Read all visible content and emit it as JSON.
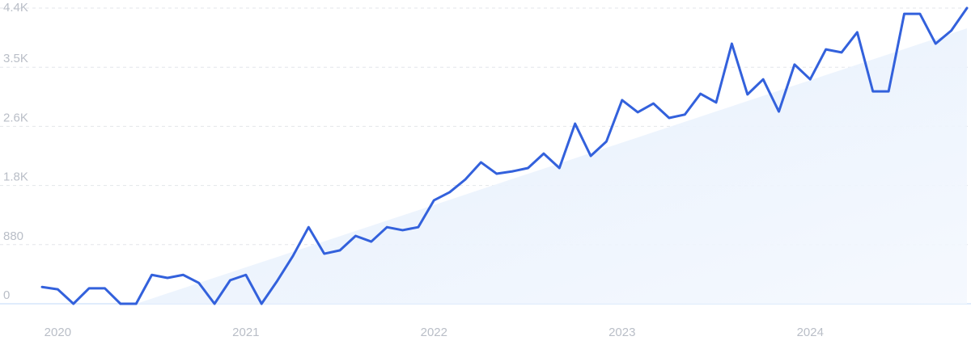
{
  "chart_data": {
    "type": "line",
    "categories": [
      null,
      "2020",
      null,
      null,
      null,
      null,
      null,
      null,
      null,
      null,
      null,
      null,
      null,
      "2021",
      null,
      null,
      null,
      null,
      null,
      null,
      null,
      null,
      null,
      null,
      null,
      "2022",
      null,
      null,
      null,
      null,
      null,
      null,
      null,
      null,
      null,
      null,
      null,
      "2023",
      null,
      null,
      null,
      null,
      null,
      null,
      null,
      null,
      null,
      null,
      null,
      "2024",
      null,
      null,
      null,
      null,
      null,
      null,
      null,
      null,
      null,
      null
    ],
    "series": [
      {
        "color": "#3361dc",
        "values": [
          250,
          215,
          0,
          230,
          230,
          0,
          0,
          430,
          385,
          430,
          310,
          0,
          350,
          430,
          0,
          340,
          710,
          1140,
          745,
          795,
          1010,
          925,
          1140,
          1095,
          1140,
          1540,
          1660,
          1850,
          2105,
          1935,
          1970,
          2020,
          2235,
          2020,
          2680,
          2200,
          2415,
          3030,
          2850,
          2980,
          2765,
          2815,
          3125,
          2995,
          3870,
          3115,
          3340,
          2860,
          3560,
          3340,
          3785,
          3740,
          4040,
          3160,
          3160,
          4315,
          4315,
          3870,
          4065,
          4400
        ]
      }
    ],
    "trend": {
      "color": "#e6f0fc",
      "values": [
        null,
        null,
        null,
        null,
        null,
        null,
        0,
        77,
        155,
        232,
        309,
        387,
        464,
        542,
        619,
        696,
        774,
        851,
        928,
        1006,
        1083,
        1160,
        1238,
        1315,
        1392,
        1470,
        1547,
        1625,
        1702,
        1779,
        1857,
        1934,
        2011,
        2089,
        2166,
        2243,
        2321,
        2398,
        2475,
        2553,
        2630,
        2708,
        2785,
        2862,
        2940,
        3017,
        3094,
        3172,
        3249,
        3326,
        3404,
        3481,
        3558,
        3636,
        3713,
        3790,
        3868,
        3945,
        4022,
        4100
      ]
    },
    "ylim": [
      0,
      4400
    ],
    "yticks": [
      0,
      880,
      {
        "value": 1760,
        "label": "1.8K"
      },
      {
        "value": 2640,
        "label": "2.6K"
      },
      {
        "value": 3520,
        "label": "3.5K"
      },
      {
        "value": 4400,
        "label": "4.4K"
      }
    ],
    "grid": true
  }
}
